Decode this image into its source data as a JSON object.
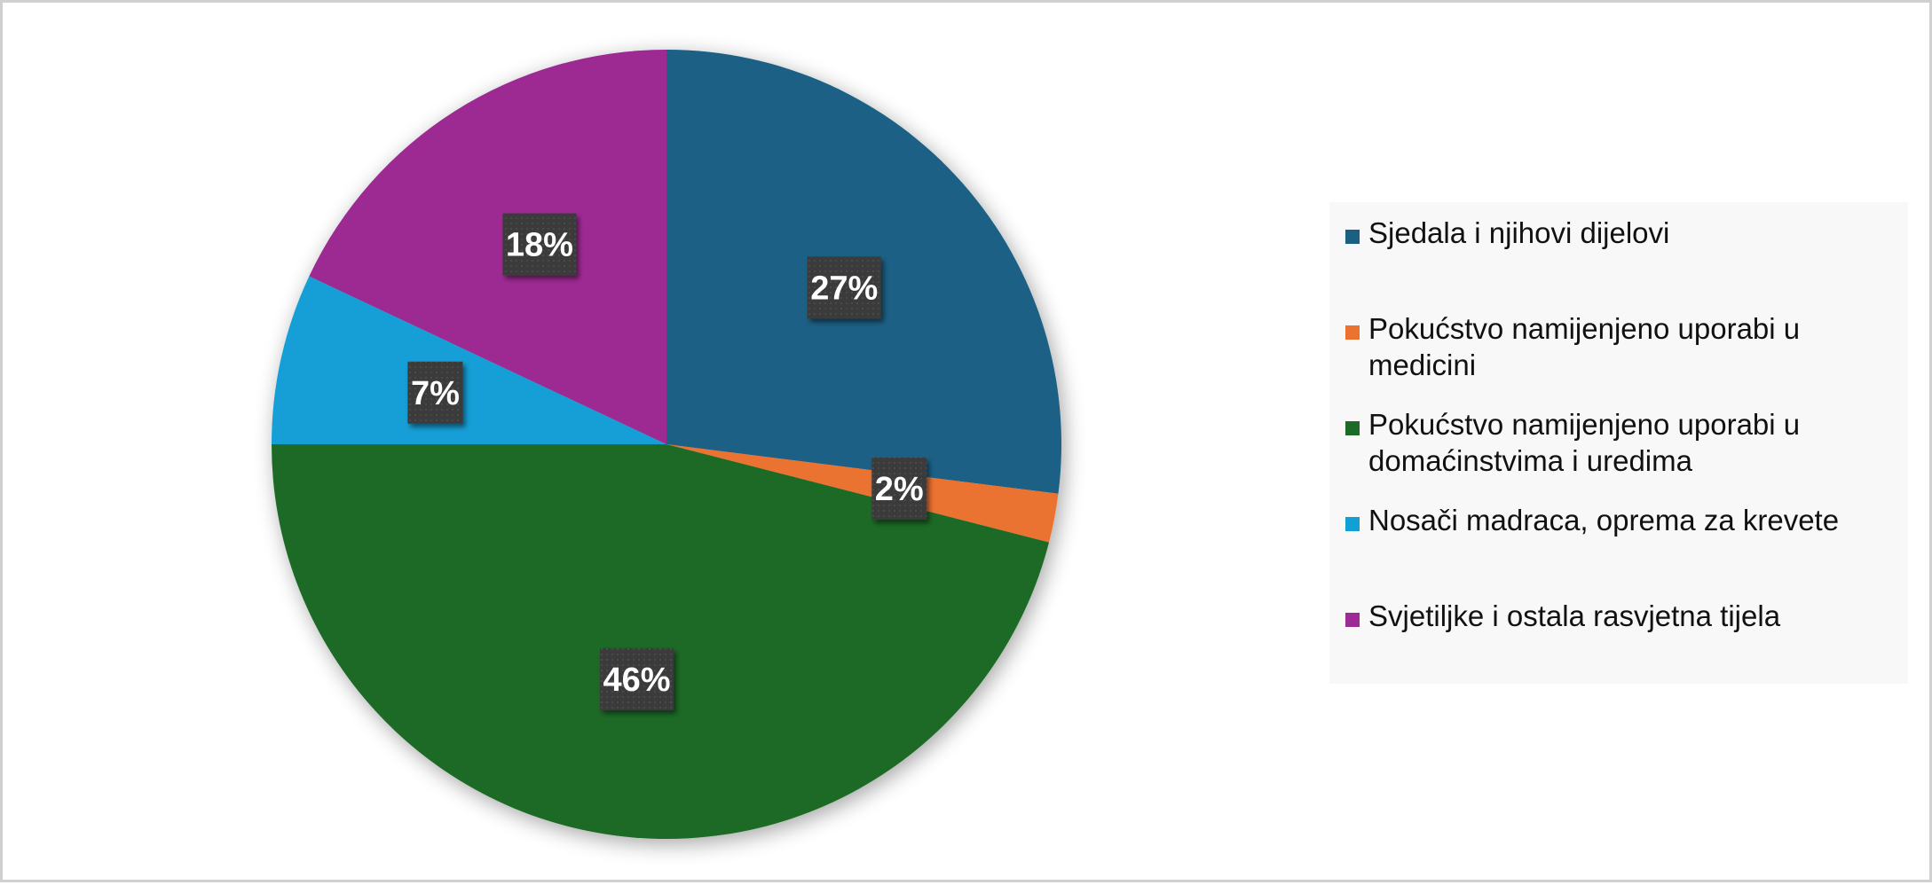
{
  "chart_data": {
    "type": "pie",
    "title": "",
    "categories": [
      "Sjedala i njihovi dijelovi",
      "Pokućstvo namijenjeno uporabi u medicini",
      "Pokućstvo namijenjeno uporabi u domaćinstvima i uredima",
      "Nosači madraca, oprema za krevete",
      "Svjetiljke i ostala rasvjetna tijela"
    ],
    "values": [
      27,
      2,
      46,
      7,
      18
    ],
    "data_labels": [
      "27%",
      "2%",
      "46%",
      "7%",
      "18%"
    ],
    "colors": [
      "#1a6085",
      "#ea7330",
      "#1b6b27",
      "#129fd6",
      "#9d2b93"
    ],
    "legend_position": "right",
    "start_angle": "top, clockwise"
  }
}
